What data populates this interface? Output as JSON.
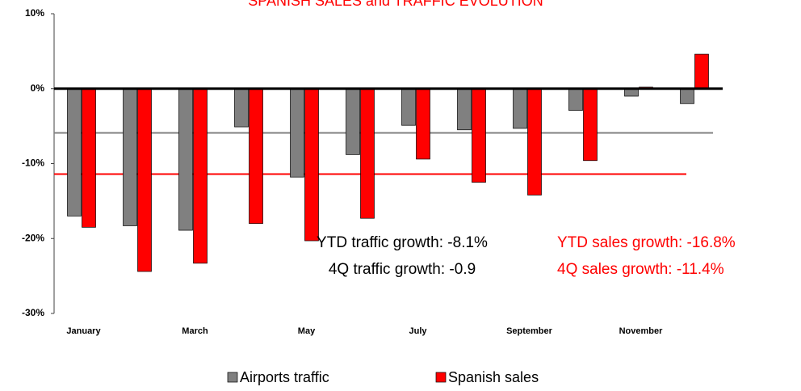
{
  "chart_data": {
    "type": "bar",
    "title": "SPANISH SALES and TRAFFIC EVOLUTION",
    "title_color": "#ff0000",
    "categories": [
      "January",
      null,
      "March",
      null,
      "May",
      null,
      "July",
      null,
      "September",
      null,
      "November",
      null
    ],
    "series": [
      {
        "name": "Airports traffic",
        "color": "#808080",
        "values": [
          -17.0,
          -18.3,
          -18.9,
          -5.1,
          -11.8,
          -8.8,
          -4.9,
          -5.5,
          -5.3,
          -2.9,
          -1.0,
          -2.0
        ]
      },
      {
        "name": "Spanish sales",
        "color": "#ff0000",
        "values": [
          -18.5,
          -24.4,
          -23.3,
          -18.0,
          -20.3,
          -17.3,
          -9.4,
          -12.5,
          -14.2,
          -9.6,
          0.2,
          4.6
        ]
      }
    ],
    "reference_lines": [
      {
        "value": -5.9,
        "color": "#808080"
      },
      {
        "value": -11.4,
        "color": "#ff0000"
      }
    ],
    "ylim": [
      -30,
      10
    ],
    "yticks": [
      {
        "value": -30,
        "label": "-30%"
      },
      {
        "value": -20,
        "label": "-20%"
      },
      {
        "value": -10,
        "label": "-10%"
      },
      {
        "value": 0,
        "label": "0%"
      },
      {
        "value": 10,
        "label": "10%"
      }
    ],
    "annotations": [
      {
        "text": "YTD traffic growth: -8.1%",
        "color": "#000000"
      },
      {
        "text": "4Q traffic growth: -0.9",
        "color": "#000000"
      },
      {
        "text": "YTD sales growth: -16.8%",
        "color": "#ff0000"
      },
      {
        "text": "4Q sales growth: -11.4%",
        "color": "#ff0000"
      }
    ],
    "legend": "bottom"
  }
}
